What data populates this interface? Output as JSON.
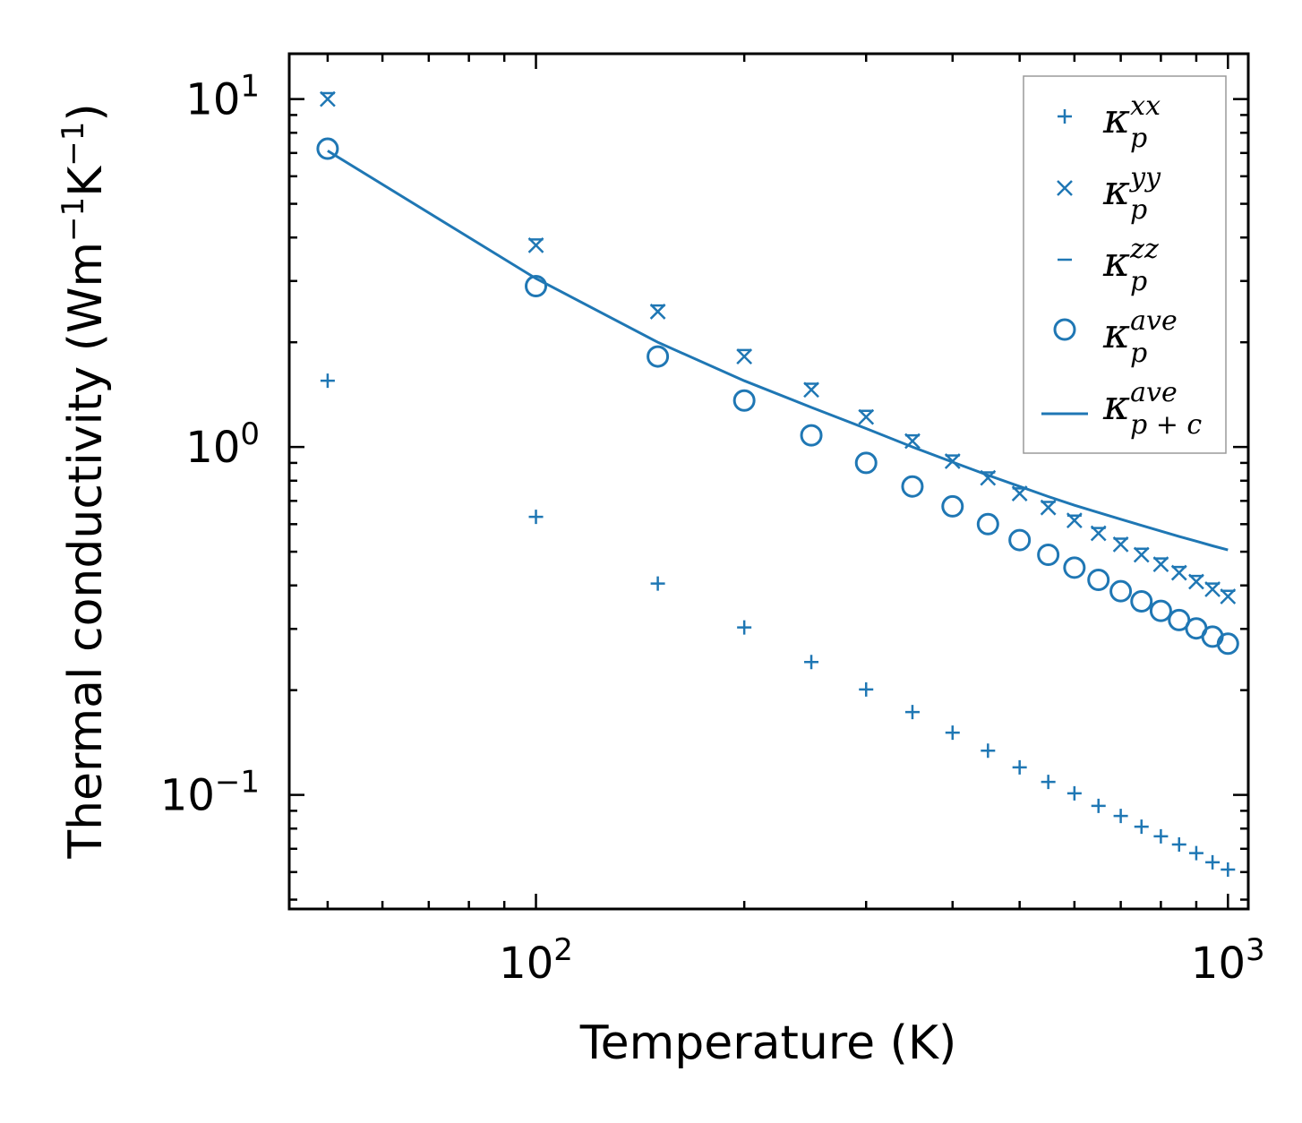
{
  "chart_data": {
    "type": "scatter",
    "xscale": "log",
    "yscale": "log",
    "xlabel": "Temperature (K)",
    "ylabel": "Thermal conductivity (Wm$^{-1}$K$^{-1}$)",
    "ylabel_parts": [
      "Thermal conductivity (Wm",
      "−1",
      "K",
      "−1",
      ")"
    ],
    "xlim": [
      44,
      1070
    ],
    "ylim": [
      0.047,
      13.5
    ],
    "xticks": [
      {
        "base": "10",
        "exp": "2",
        "value": 100
      },
      {
        "base": "10",
        "exp": "3",
        "value": 1000
      }
    ],
    "yticks": [
      {
        "base": "10",
        "exp": "−1",
        "value": 0.1
      },
      {
        "base": "10",
        "exp": "0",
        "value": 1
      },
      {
        "base": "10",
        "exp": "1",
        "value": 10
      }
    ],
    "color": "#1f77b4",
    "x": [
      50,
      100,
      150,
      200,
      250,
      300,
      350,
      400,
      450,
      500,
      550,
      600,
      650,
      700,
      750,
      800,
      850,
      900,
      950,
      1000
    ],
    "series": [
      {
        "key": "kxx",
        "name": "κ_p^xx",
        "marker": "plus",
        "values": [
          1.55,
          0.63,
          0.405,
          0.303,
          0.241,
          0.201,
          0.173,
          0.151,
          0.134,
          0.12,
          0.109,
          0.101,
          0.093,
          0.087,
          0.081,
          0.076,
          0.072,
          0.068,
          0.064,
          0.061
        ]
      },
      {
        "key": "kyy",
        "name": "κ_p^yy",
        "marker": "x",
        "values": [
          10.0,
          3.8,
          2.45,
          1.82,
          1.46,
          1.22,
          1.04,
          0.91,
          0.815,
          0.735,
          0.67,
          0.615,
          0.565,
          0.525,
          0.49,
          0.46,
          0.435,
          0.41,
          0.39,
          0.372
        ]
      },
      {
        "key": "kzz",
        "name": "κ_p^zz",
        "marker": "hline",
        "values": [
          10.4,
          3.95,
          2.55,
          1.9,
          1.52,
          1.27,
          1.08,
          0.945,
          0.845,
          0.76,
          0.695,
          0.635,
          0.585,
          0.545,
          0.51,
          0.478,
          0.452,
          0.426,
          0.405,
          0.386
        ]
      },
      {
        "key": "kave",
        "name": "κ_p^ave",
        "marker": "circle",
        "values": [
          7.2,
          2.9,
          1.82,
          1.36,
          1.08,
          0.9,
          0.77,
          0.675,
          0.6,
          0.54,
          0.49,
          0.45,
          0.415,
          0.385,
          0.36,
          0.338,
          0.318,
          0.301,
          0.285,
          0.272
        ]
      },
      {
        "key": "kpc",
        "name": "κ_{p+c}^ave",
        "marker": "line",
        "values": [
          7.1,
          3.05,
          2.0,
          1.55,
          1.3,
          1.13,
          1.0,
          0.905,
          0.83,
          0.77,
          0.72,
          0.68,
          0.648,
          0.62,
          0.595,
          0.573,
          0.553,
          0.536,
          0.52,
          0.506
        ]
      }
    ],
    "legend": {
      "position": "top-right",
      "entries": [
        {
          "symbol": "κ",
          "sub": "p",
          "sup": "xx"
        },
        {
          "symbol": "κ",
          "sub": "p",
          "sup": "yy"
        },
        {
          "symbol": "κ",
          "sub": "p",
          "sup": "zz"
        },
        {
          "symbol": "κ",
          "sub": "p",
          "sup": "ave"
        },
        {
          "symbol": "κ",
          "sub": "p + c",
          "sup": "ave"
        }
      ]
    }
  }
}
